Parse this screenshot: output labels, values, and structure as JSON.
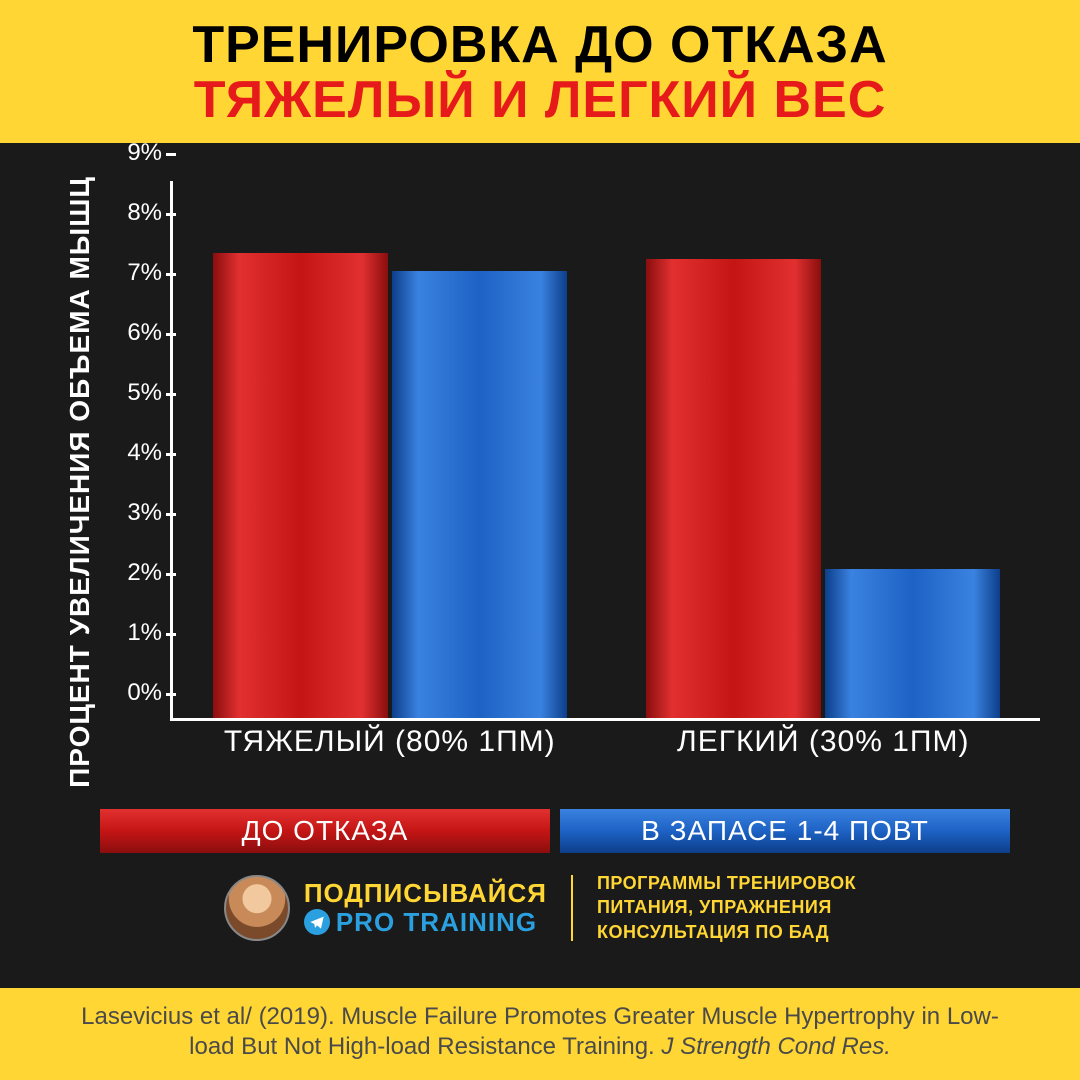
{
  "header": {
    "line1": "ТРЕНИРОВКА ДО ОТКАЗА",
    "line2": "ТЯЖЕЛЫЙ И ЛЕГКИЙ ВЕС",
    "bg": "#ffd633",
    "color1": "#000000",
    "color2": "#e61a1a",
    "fontsize": 52
  },
  "chart": {
    "type": "grouped-bar",
    "background": "#1a1a1a",
    "axis_color": "#ffffff",
    "text_color": "#ffffff",
    "ylabel": "ПРОЦЕНТ УВЕЛИЧЕНИЯ ОБЪЕМА МЫШЦ",
    "ylabel_fontsize": 28,
    "ylim": [
      0,
      9
    ],
    "yticks": [
      "0%",
      "1%",
      "2%",
      "3%",
      "4%",
      "5%",
      "6%",
      "7%",
      "8%",
      "9%"
    ],
    "tick_fontsize": 24,
    "groups": [
      {
        "label": "ТЯЖЕЛЫЙ (80% 1ПМ)",
        "values": [
          7.8,
          7.5
        ]
      },
      {
        "label": "ЛЕГКИЙ (30% 1ПМ)",
        "values": [
          7.7,
          2.5
        ]
      }
    ],
    "xlabel_fontsize": 30,
    "series": [
      {
        "name": "ДО ОТКАЗА",
        "fill": "#c41515",
        "grad_top": "#e23030",
        "grad_bot": "#8a0e0e"
      },
      {
        "name": "В ЗАПАСЕ 1-4 ПОВТ",
        "fill": "#1d62c4",
        "grad_top": "#3a82e0",
        "grad_bot": "#0d3e8a"
      }
    ],
    "legend_fontsize": 28,
    "bar_max_width": 175
  },
  "promo": {
    "subscribe": "ПОДПИСЫВАЙСЯ",
    "channel": "PRO TRAINING",
    "accent_color": "#ffd633",
    "link_color": "#2aa0e0",
    "right_lines": [
      "ПРОГРАММЫ ТРЕНИРОВОК",
      "ПИТАНИЯ, УПРАЖНЕНИЯ",
      "КОНСУЛЬТАЦИЯ ПО БАД"
    ]
  },
  "footer": {
    "text_a": "Lasevicius et al/ (2019). Muscle Failure Promotes Greater Muscle Hypertrophy in Low-load But Not High-load Resistance Training. ",
    "text_b": "J Strength Cond Res.",
    "bg": "#ffd633",
    "color": "#4a4a4a",
    "fontsize": 24
  }
}
